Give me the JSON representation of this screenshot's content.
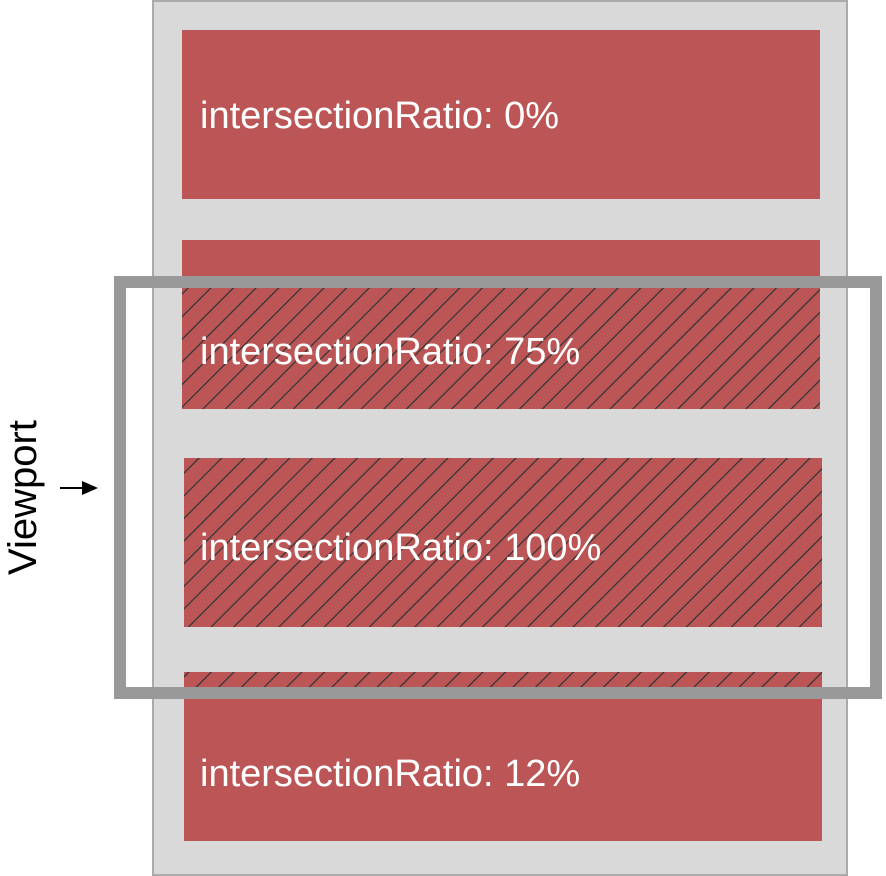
{
  "boxes": [
    {
      "label": "intersectionRatio: 0%"
    },
    {
      "label": "intersectionRatio: 75%"
    },
    {
      "label": "intersectionRatio: 100%"
    },
    {
      "label": "intersectionRatio: 12%"
    }
  ],
  "viewport": {
    "label": "Viewport"
  },
  "colors": {
    "box": "#bc5656",
    "container": "#d9d9d9",
    "viewport_frame": "#999999",
    "hatch": "#333333"
  }
}
